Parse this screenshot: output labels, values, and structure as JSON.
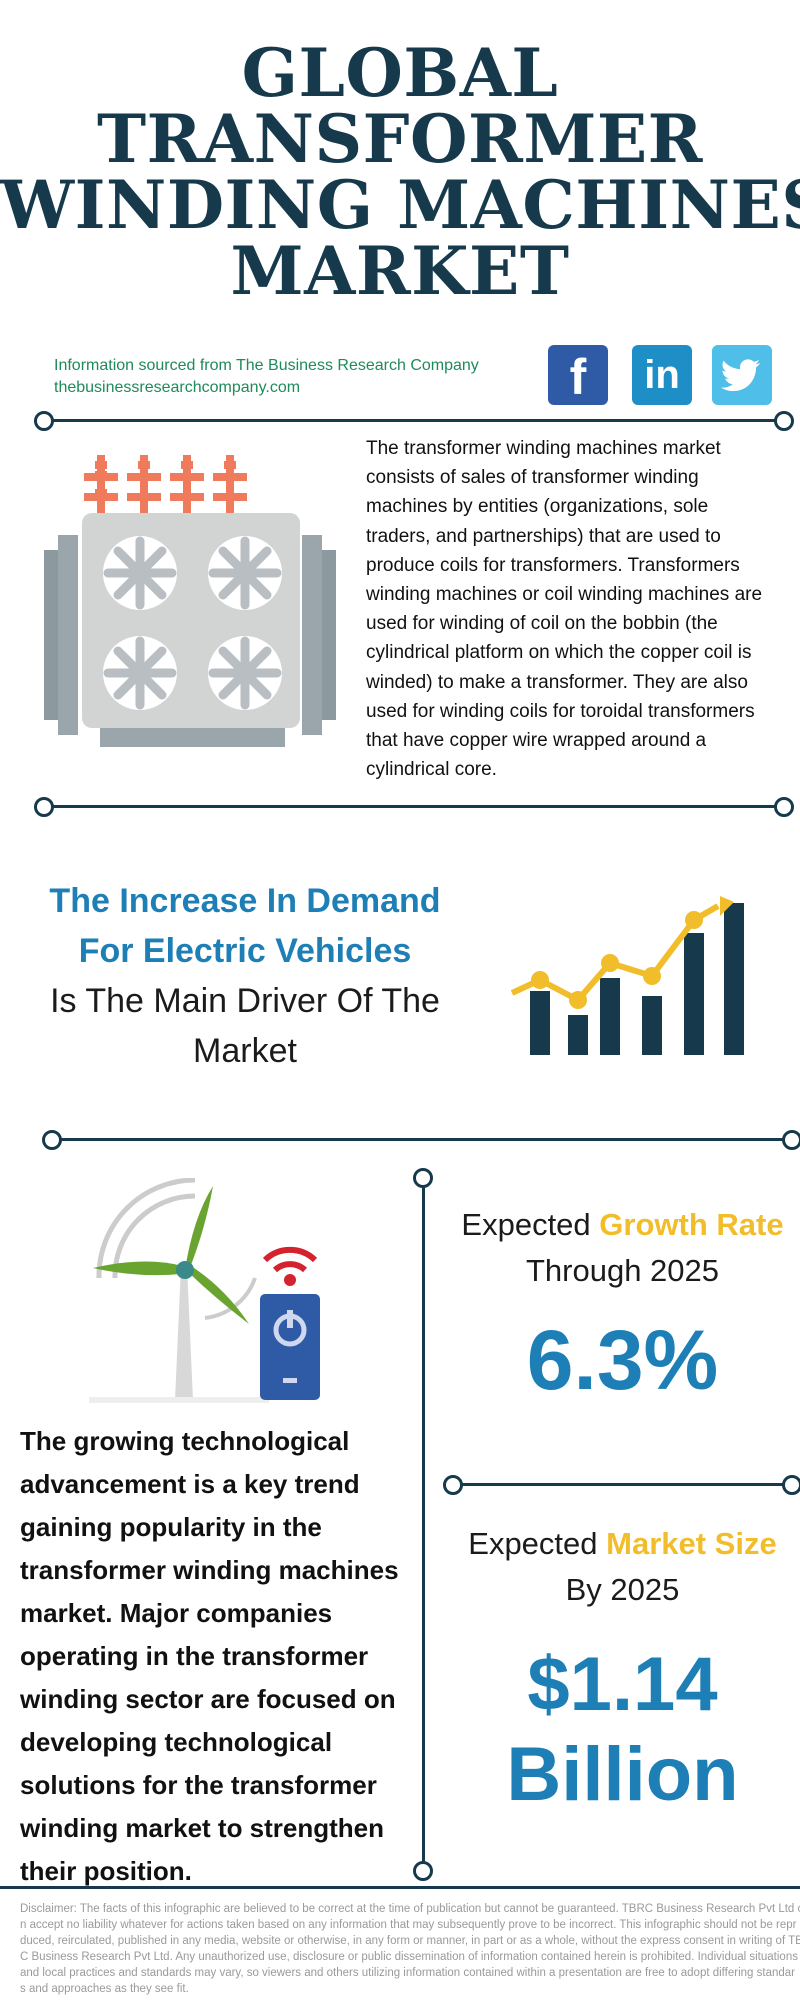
{
  "title": {
    "line1": "GLOBAL",
    "line2": "TRANSFORMER",
    "line3": "WINDING MACHINES",
    "line4": "MARKET"
  },
  "source": {
    "line1": "Information sourced from The Business Research Company",
    "line2": "thebusinessresearchcompany.com"
  },
  "social": {
    "facebook_glyph": "f",
    "linkedin_glyph": "in",
    "icons": [
      "facebook-icon",
      "linkedin-icon",
      "twitter-icon"
    ]
  },
  "description": "The transformer winding machines market consists of sales of transformer winding machines by entities (organizations, sole traders, and partnerships) that are used to produce coils for transformers. Transformers winding machines or coil winding machines are used for winding of coil on the bobbin (the cylindrical platform on which the copper coil is winded) to make a transformer. They are also used for winding coils for toroidal transformers that have copper wire wrapped around a cylindrical core.",
  "driver": {
    "line1": "The Increase In Demand",
    "line2": "For Electric Vehicles",
    "line3": "Is The Main Driver Of The",
    "line4": "Market"
  },
  "trend": "The growing technological advancement is a key trend gaining popularity in the transformer winding machines market. Major companies operating in the transformer winding sector are focused on developing technological solutions for the transformer winding market to strengthen their position.",
  "growth": {
    "prefix": "Expected ",
    "highlight": "Growth Rate",
    "line2": "Through 2025",
    "value": "6.3%"
  },
  "market_size": {
    "prefix": "Expected ",
    "highlight": "Market Size",
    "line2": "By 2025",
    "value_line1": "$1.14",
    "value_line2": "Billion"
  },
  "disclaimer": {
    "line1": "Disclaimer: The facts of this infographic are believed to be correct at the time of publication but cannot be guaranteed. TBRC Business Research Pvt Ltd c",
    "line2": "n accept no liability whatever for actions taken based on any information that may subsequently prove to be incorrect. This infographic should not be repr",
    "line3": "duced, reirculated, published in any media, website or otherwise, in any form or manner, in part or as a whole, without the express consent in writing of TB",
    "line4": "C Business Research Pvt Ltd. Any unauthorized use, disclosure or public dissemination of information contained herein is prohibited. Individual situations",
    "line5": "and local practices and standards may vary, so viewers and others utilizing information contained within a presentation are free to adopt differing standar",
    "line6": "s and approaches as they see fit."
  },
  "colors": {
    "navy": "#163a4c",
    "blue": "#1e7fb6",
    "yellow": "#f2bd2a",
    "green_text": "#1f8a5a",
    "transformer_orange": "#ef7a5c"
  }
}
